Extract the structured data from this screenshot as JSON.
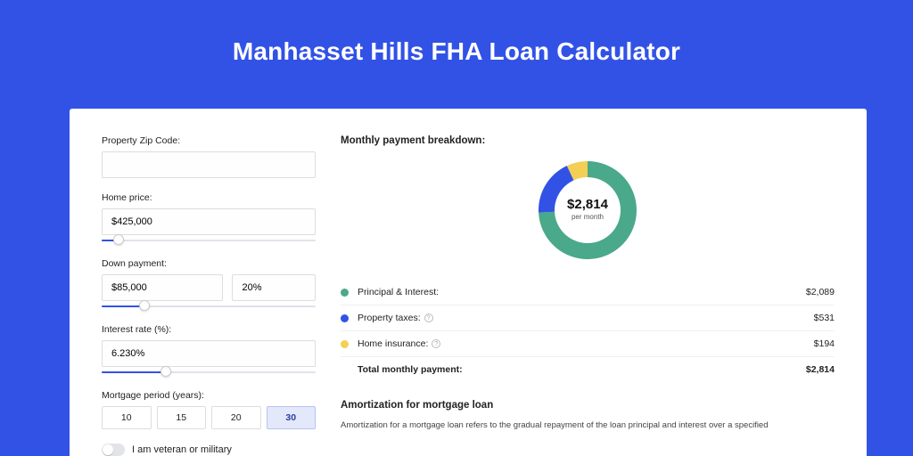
{
  "page": {
    "title": "Manhasset Hills FHA Loan Calculator",
    "background_color": "#3252e6",
    "panel_background": "#ffffff"
  },
  "form": {
    "zip": {
      "label": "Property Zip Code:",
      "value": ""
    },
    "home_price": {
      "label": "Home price:",
      "value": "$425,000",
      "slider_percent": 8
    },
    "down_payment": {
      "label": "Down payment:",
      "amount": "$85,000",
      "percent": "20%",
      "slider_percent": 20
    },
    "interest_rate": {
      "label": "Interest rate (%):",
      "value": "6.230%",
      "slider_percent": 30
    },
    "period": {
      "label": "Mortgage period (years):",
      "options": [
        "10",
        "15",
        "20",
        "30"
      ],
      "selected": "30"
    },
    "veteran": {
      "label": "I am veteran or military",
      "checked": false
    }
  },
  "breakdown": {
    "title": "Monthly payment breakdown:",
    "total_center": {
      "amount": "$2,814",
      "sub": "per month"
    },
    "donut": {
      "type": "donut",
      "outer_r": 55,
      "inner_r": 37,
      "background_color": "#ffffff",
      "slices": [
        {
          "key": "principal_interest",
          "value": 2089,
          "color": "#4aa88b"
        },
        {
          "key": "property_taxes",
          "value": 531,
          "color": "#3252e6"
        },
        {
          "key": "home_insurance",
          "value": 194,
          "color": "#f3cf55"
        }
      ]
    },
    "rows": [
      {
        "key": "principal_interest",
        "label": "Principal & Interest:",
        "amount": "$2,089",
        "swatch": "#4aa88b",
        "info": false
      },
      {
        "key": "property_taxes",
        "label": "Property taxes:",
        "amount": "$531",
        "swatch": "#3252e6",
        "info": true
      },
      {
        "key": "home_insurance",
        "label": "Home insurance:",
        "amount": "$194",
        "swatch": "#f3cf55",
        "info": true
      }
    ],
    "total_row": {
      "label": "Total monthly payment:",
      "amount": "$2,814"
    }
  },
  "amortization": {
    "title": "Amortization for mortgage loan",
    "text": "Amortization for a mortgage loan refers to the gradual repayment of the loan principal and interest over a specified"
  }
}
